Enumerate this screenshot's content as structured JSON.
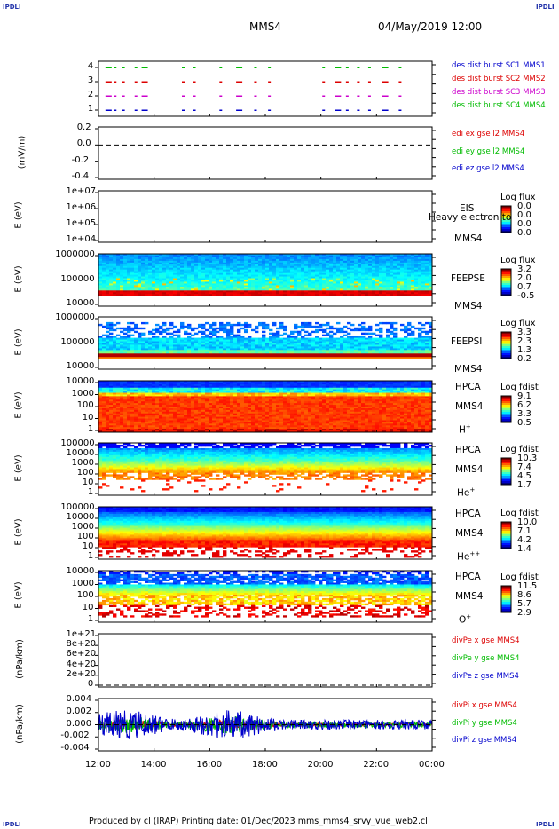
{
  "corners": {
    "tl": "IPDLI",
    "tr": "IPDLI",
    "bl": "IPDLI",
    "br": "IPDLI"
  },
  "header": {
    "spacecraft": "MMS4",
    "datetime": "04/May/2019 12:00"
  },
  "footer": "Produced by cl (IRAP)   Printing date: 01/Dec/2023   mms_mms4_srvy_vue_web2.cl",
  "colors": {
    "blue": "#0000cc",
    "red": "#dd0000",
    "green": "#00bb00",
    "magenta": "#cc00cc"
  },
  "chart_data": [
    {
      "type": "scatter",
      "panel": "burst",
      "ylim": [
        0.5,
        4.5
      ],
      "yticks": [
        "1",
        "2",
        "3",
        "4"
      ],
      "legend": [
        {
          "name": "des dist burst SC1 MMS1",
          "color": "#0000cc"
        },
        {
          "name": "des dist burst SC2 MMS2",
          "color": "#dd0000"
        },
        {
          "name": "des dist burst SC3 MMS3",
          "color": "#cc00cc"
        },
        {
          "name": "des dist burst SC4 MMS4",
          "color": "#00bb00"
        }
      ],
      "burst_times": [
        12.25,
        12.55,
        12.85,
        13.3,
        13.55,
        15.0,
        15.4,
        16.35,
        16.95,
        17.6,
        18.1,
        20.05,
        20.5,
        20.9,
        21.3,
        21.7,
        22.2,
        22.8
      ]
    },
    {
      "type": "line",
      "panel": "edi",
      "ylabel": "(mV/m)",
      "ylim": [
        -0.4,
        0.3
      ],
      "yticks": [
        "0.2",
        "0.0",
        "-0.2",
        "-0.4"
      ],
      "legend": [
        {
          "name": "edi ex gse l2 MMS4",
          "color": "#dd0000"
        },
        {
          "name": "edi ey gse l2 MMS4",
          "color": "#00bb00"
        },
        {
          "name": "edi ez gse l2 MMS4",
          "color": "#0000cc"
        }
      ]
    },
    {
      "type": "heatmap",
      "panel": "eis",
      "ylabel": "E (eV)",
      "yticks": [
        "1e+07",
        "1e+06",
        "1e+05",
        "1e+04"
      ],
      "side_labels": [
        "EIS",
        "Heavy electron to",
        "MMS4"
      ],
      "cbar_title": "Log flux",
      "cbar_values": [
        "0.0",
        "0.0",
        "0.0",
        "0.0"
      ]
    },
    {
      "type": "heatmap",
      "panel": "feepse",
      "ylabel": "E (eV)",
      "yticks": [
        "1000000",
        "100000",
        "10000"
      ],
      "side_labels": [
        "FEEPSE",
        "MMS4"
      ],
      "cbar_title": "Log flux",
      "cbar_values": [
        "3.2",
        "2.0",
        "0.7",
        "-0.5"
      ]
    },
    {
      "type": "heatmap",
      "panel": "feepsi",
      "ylabel": "E (eV)",
      "yticks": [
        "1000000",
        "100000",
        "10000"
      ],
      "side_labels": [
        "FEEPSI",
        "MMS4"
      ],
      "cbar_title": "Log flux",
      "cbar_values": [
        "3.3",
        "2.3",
        "1.3",
        "0.2"
      ]
    },
    {
      "type": "heatmap",
      "panel": "hpca-h",
      "ylabel": "E (eV)",
      "yticks": [
        "10000",
        "1000",
        "100",
        "10",
        "1"
      ],
      "side_labels": [
        "HPCA",
        "MMS4"
      ],
      "species": "H",
      "species_sup": "+",
      "cbar_title": "Log fdist",
      "cbar_values": [
        "9.1",
        "6.2",
        "3.3",
        "0.5"
      ]
    },
    {
      "type": "heatmap",
      "panel": "hpca-he",
      "ylabel": "E (eV)",
      "yticks": [
        "100000",
        "10000",
        "1000",
        "100",
        "10",
        "1"
      ],
      "side_labels": [
        "HPCA",
        "MMS4"
      ],
      "species": "He",
      "species_sup": "+",
      "cbar_title": "Log fdist",
      "cbar_values": [
        "10.3",
        "7.4",
        "4.5",
        "1.7"
      ]
    },
    {
      "type": "heatmap",
      "panel": "hpca-hepp",
      "ylabel": "E (eV)",
      "yticks": [
        "100000",
        "10000",
        "1000",
        "100",
        "10",
        "1"
      ],
      "side_labels": [
        "HPCA",
        "MMS4"
      ],
      "species": "He",
      "species_sup": "++",
      "cbar_title": "Log fdist",
      "cbar_values": [
        "10.0",
        "7.1",
        "4.2",
        "1.4"
      ]
    },
    {
      "type": "heatmap",
      "panel": "hpca-o",
      "ylabel": "E (eV)",
      "yticks": [
        "10000",
        "1000",
        "100",
        "10",
        "1"
      ],
      "side_labels": [
        "HPCA",
        "MMS4"
      ],
      "species": "O",
      "species_sup": "+",
      "cbar_title": "Log fdist",
      "cbar_values": [
        "11.5",
        "8.6",
        "5.7",
        "2.9"
      ]
    },
    {
      "type": "line",
      "panel": "divpe",
      "ylabel": "(nPa/km)",
      "ylim": [
        -1e+20,
        1.1e+21
      ],
      "yticks": [
        "1e+21",
        "8e+20",
        "6e+20",
        "4e+20",
        "2e+20",
        "0"
      ],
      "legend": [
        {
          "name": "divPe x gse MMS4",
          "color": "#dd0000"
        },
        {
          "name": "divPe y gse MMS4",
          "color": "#00bb00"
        },
        {
          "name": "divPe z gse MMS4",
          "color": "#0000cc"
        }
      ]
    },
    {
      "type": "line",
      "panel": "divpi",
      "ylabel": "(nPa/km)",
      "ylim": [
        -0.006,
        0.004
      ],
      "yticks": [
        "0.004",
        "0.002",
        "0.000",
        "-0.002",
        "-0.004"
      ],
      "legend": [
        {
          "name": "divPi x gse MMS4",
          "color": "#dd0000"
        },
        {
          "name": "divPi y gse MMS4",
          "color": "#00bb00"
        },
        {
          "name": "divPi z gse MMS4",
          "color": "#0000cc"
        }
      ]
    }
  ],
  "xaxis": {
    "ticks": [
      "12:00",
      "14:00",
      "16:00",
      "18:00",
      "20:00",
      "22:00",
      "00:00"
    ]
  }
}
